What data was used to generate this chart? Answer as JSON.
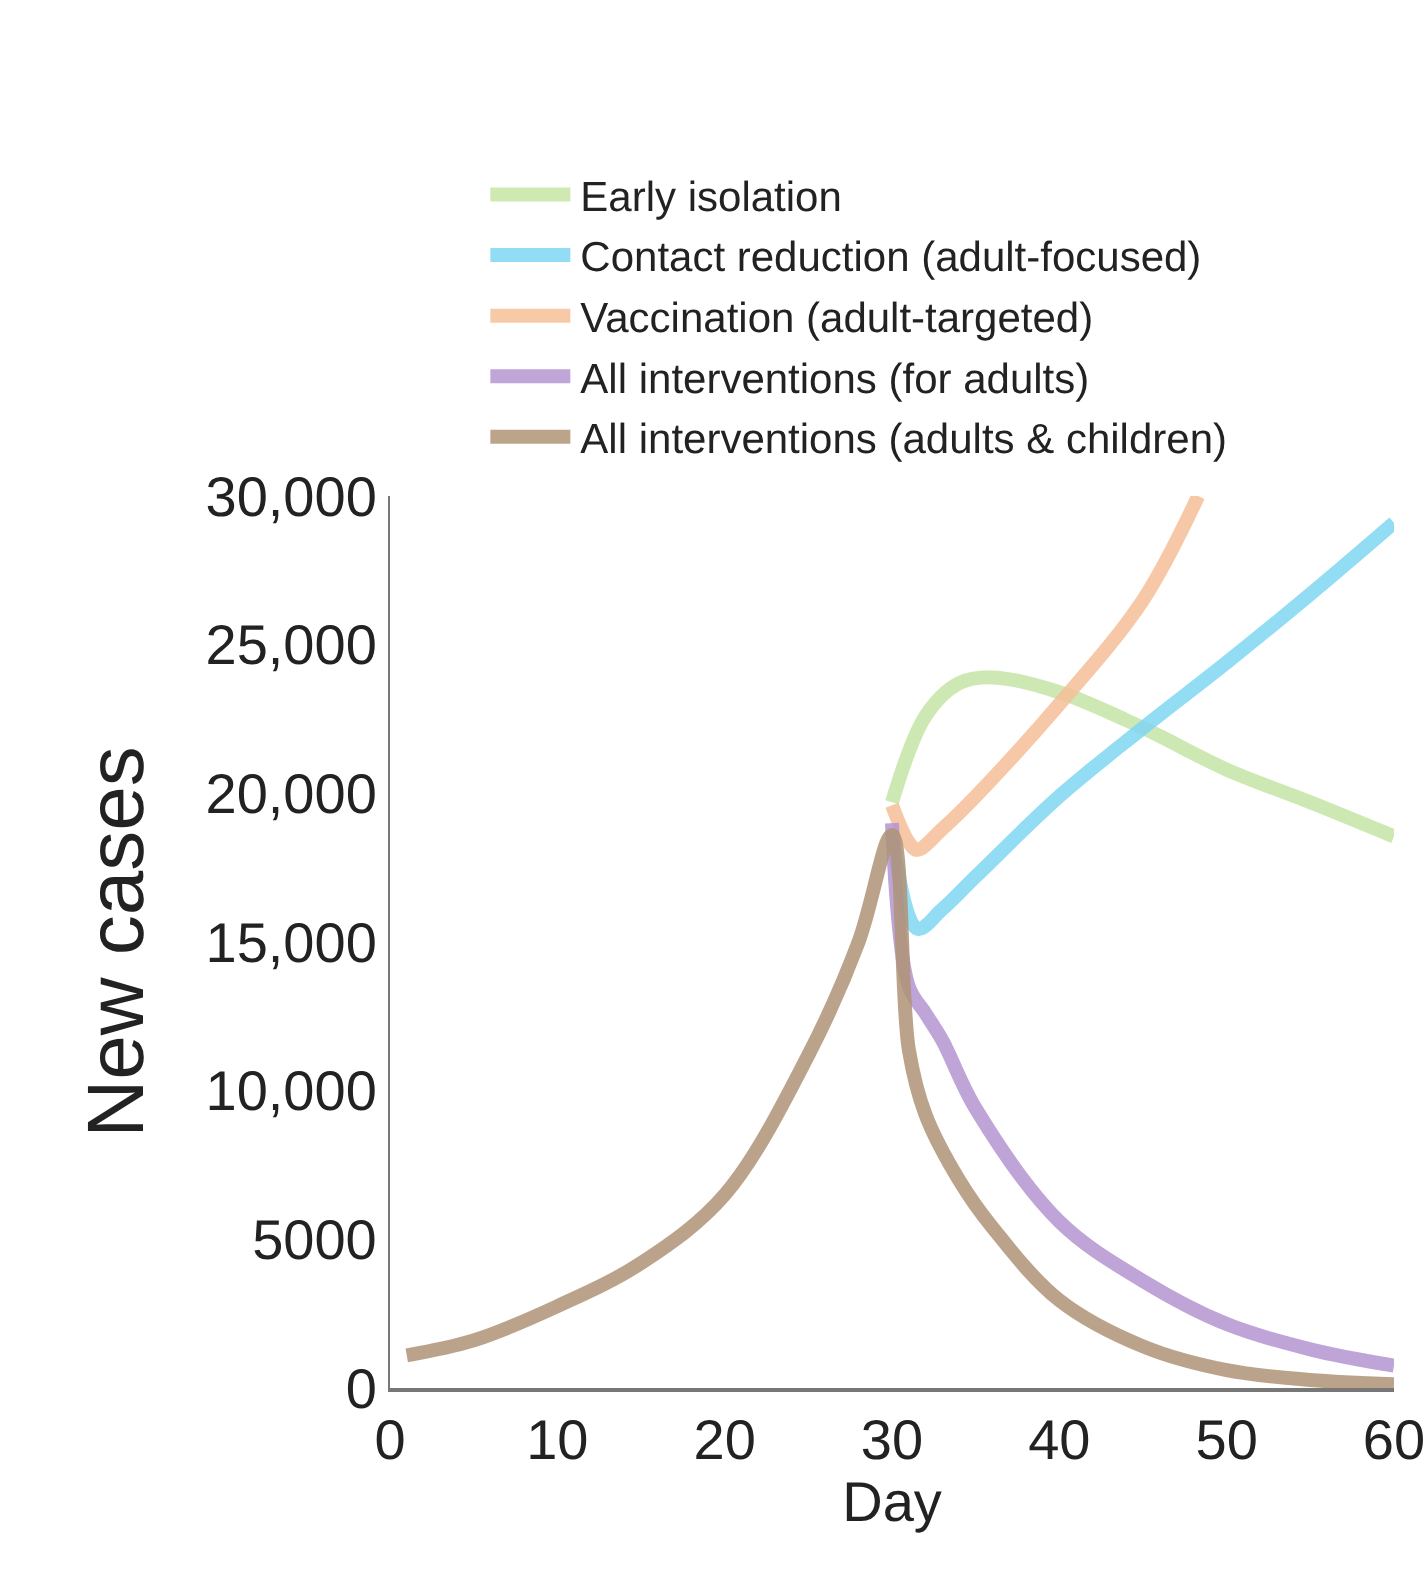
{
  "chart_data": {
    "type": "line",
    "xlabel": "Day",
    "ylabel": "New cases",
    "xlim": [
      0,
      60
    ],
    "ylim": [
      0,
      30000
    ],
    "xticks": [
      0,
      10,
      20,
      30,
      40,
      50,
      60
    ],
    "yticks": [
      {
        "value": 0,
        "label": "0"
      },
      {
        "value": 5000,
        "label": "5000"
      },
      {
        "value": 10000,
        "label": "10,000"
      },
      {
        "value": 15000,
        "label": "15,000"
      },
      {
        "value": 20000,
        "label": "20,000"
      },
      {
        "value": 25000,
        "label": "25,000"
      },
      {
        "value": 30000,
        "label": "30,000"
      }
    ],
    "grid": false,
    "legend": "top",
    "marker": "none",
    "line_style": "solid",
    "series": [
      {
        "name": "Early isolation",
        "color": "#c5e5a5",
        "x": [
          30,
          32,
          34,
          36,
          40,
          45,
          50,
          55,
          60
        ],
        "values": [
          19700,
          22600,
          23700,
          23900,
          23400,
          22200,
          20800,
          19700,
          18550
        ]
      },
      {
        "name": "Contact reduction (adult-focused)",
        "color": "#7fd6f3",
        "x": [
          30,
          31.5,
          33,
          35,
          40,
          45,
          50,
          55,
          60
        ],
        "values": [
          18700,
          15450,
          16100,
          17200,
          19900,
          22200,
          24400,
          26700,
          29100
        ]
      },
      {
        "name": "Vaccination (adult-targeted)",
        "color": "#f6bf98",
        "x": [
          30,
          31,
          31.5,
          33,
          35,
          40,
          45,
          48.3
        ],
        "values": [
          19600,
          18350,
          18100,
          18800,
          19900,
          23000,
          26500,
          30000
        ]
      },
      {
        "name": "All interventions (for adults)",
        "color": "#b595d1",
        "x": [
          30,
          31,
          32,
          33,
          35,
          40,
          45,
          50,
          55,
          60
        ],
        "values": [
          19000,
          13500,
          12600,
          11700,
          9400,
          5600,
          3600,
          2150,
          1300,
          750
        ]
      },
      {
        "name": "All interventions (adults & children)",
        "color": "#b09477",
        "x": [
          1,
          5,
          10,
          15,
          20,
          25,
          28,
          30,
          31,
          32,
          34,
          36,
          40,
          45,
          50,
          55,
          60
        ],
        "values": [
          1100,
          1600,
          2750,
          4200,
          6500,
          11200,
          15000,
          18600,
          11400,
          9200,
          7000,
          5400,
          2950,
          1400,
          600,
          270,
          130
        ]
      }
    ]
  }
}
